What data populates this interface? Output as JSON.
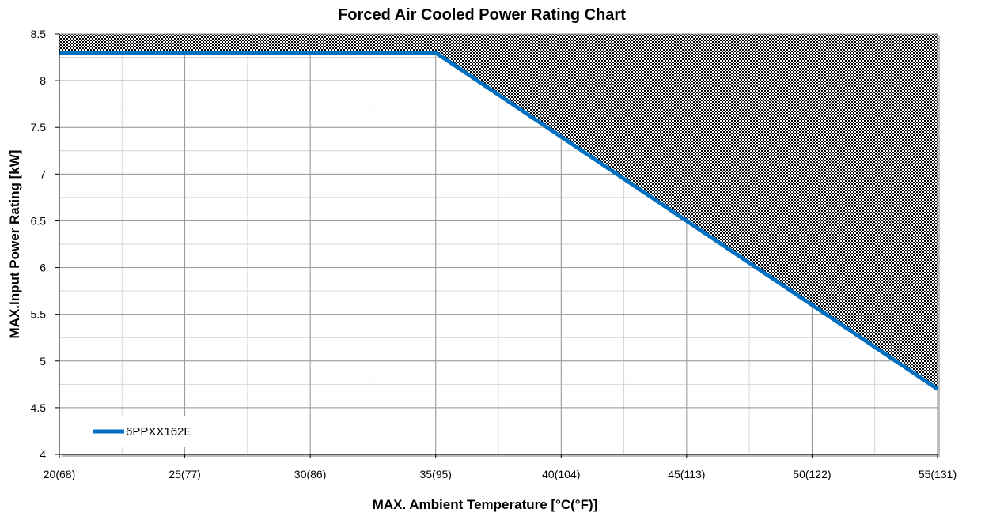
{
  "chart_data": {
    "type": "line",
    "title": "Forced Air Cooled Power Rating Chart",
    "xlabel": "MAX. Ambient Temperature [°C(°F)]",
    "ylabel": "MAX.Input Power Rating [kW]",
    "xlim": [
      20,
      55
    ],
    "ylim": [
      4,
      8.5
    ],
    "x_ticks": [
      {
        "value": 20,
        "label": "20(68)"
      },
      {
        "value": 25,
        "label": "25(77)"
      },
      {
        "value": 30,
        "label": "30(86)"
      },
      {
        "value": 35,
        "label": "35(95)"
      },
      {
        "value": 40,
        "label": "40(104)"
      },
      {
        "value": 45,
        "label": "45(113)"
      },
      {
        "value": 50,
        "label": "50(122)"
      },
      {
        "value": 55,
        "label": "55(131)"
      }
    ],
    "y_ticks": [
      {
        "value": 4,
        "label": "4"
      },
      {
        "value": 4.5,
        "label": "4.5"
      },
      {
        "value": 5,
        "label": "5"
      },
      {
        "value": 5.5,
        "label": "5.5"
      },
      {
        "value": 6,
        "label": "6"
      },
      {
        "value": 6.5,
        "label": "6.5"
      },
      {
        "value": 7,
        "label": "7"
      },
      {
        "value": 7.5,
        "label": "7.5"
      },
      {
        "value": 8,
        "label": "8"
      },
      {
        "value": 8.5,
        "label": "8.5"
      }
    ],
    "x_minor_step": 2.5,
    "y_minor_step": 0.25,
    "grid": true,
    "legend_position": "bottom-left",
    "shaded_region": "above-series",
    "series": [
      {
        "name": "6PPXX162E",
        "color": "#0070C0",
        "x": [
          20,
          35,
          55
        ],
        "y": [
          8.3,
          8.3,
          4.7
        ]
      }
    ]
  }
}
